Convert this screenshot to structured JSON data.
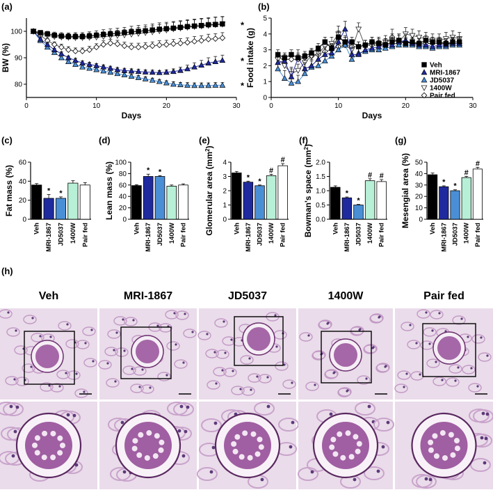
{
  "colors": {
    "Veh": "#000000",
    "MRI-1867": "#1f2a9e",
    "JD5037": "#4a8fd6",
    "1400W": "#b7f0d6",
    "Pair fed": "#ffffff",
    "tissue_bg": "#eadcea",
    "tissue_stain": "#8a3a8c"
  },
  "panels": {
    "a": "(a)",
    "b": "(b)",
    "c": "(c)",
    "d": "(d)",
    "e": "(e)",
    "f": "(f)",
    "g": "(g)",
    "h": "(h)"
  },
  "chart_data": [
    {
      "id": "a",
      "type": "line",
      "xlabel": "Days",
      "ylabel": "BW (%)",
      "xlim": [
        0,
        30
      ],
      "ylim": [
        75,
        105
      ],
      "xticks": [
        0,
        10,
        20,
        30
      ],
      "yticks": [
        80,
        90,
        100
      ],
      "x": [
        1,
        2,
        3,
        4,
        5,
        6,
        7,
        8,
        9,
        10,
        11,
        12,
        13,
        14,
        15,
        16,
        17,
        18,
        19,
        20,
        21,
        22,
        23,
        24,
        25,
        26,
        27,
        28
      ],
      "series": [
        {
          "name": "Veh",
          "marker": "square",
          "values": [
            100,
            99.5,
            99,
            98.5,
            98.2,
            98,
            98,
            98,
            98.2,
            98.5,
            98.8,
            99,
            99.2,
            99.5,
            99.8,
            100,
            100.2,
            100.5,
            100.8,
            101,
            101.2,
            101.5,
            101.8,
            102,
            102.2,
            102.5,
            102.6,
            102.8
          ],
          "err": [
            0.5,
            0.8,
            1,
            1.2,
            1.3,
            1.4,
            1.5,
            1.5,
            1.6,
            1.7,
            1.8,
            1.9,
            2,
            2,
            2.1,
            2.2,
            2.2,
            2.3,
            2.4,
            2.4,
            2.5,
            2.5,
            2.6,
            2.6,
            2.7,
            2.7,
            2.8,
            2.8
          ]
        },
        {
          "name": "MRI-1867",
          "marker": "triangle-up",
          "values": [
            100,
            97,
            95,
            93,
            91.5,
            90,
            89,
            88,
            87.5,
            87,
            86.5,
            86,
            85.5,
            85.2,
            85,
            84.8,
            84.6,
            84.5,
            84.4,
            84.5,
            84.8,
            85.2,
            85.8,
            86.5,
            87.2,
            88,
            88.5,
            89
          ],
          "err": [
            0.4,
            0.5,
            0.6,
            0.6,
            0.7,
            0.7,
            0.8,
            0.8,
            0.8,
            0.8,
            0.8,
            0.8,
            0.8,
            0.8,
            0.8,
            0.8,
            0.8,
            0.8,
            0.8,
            0.9,
            1,
            1.2,
            1.4,
            1.6,
            1.8,
            2,
            2,
            2
          ]
        },
        {
          "name": "JD5037",
          "marker": "triangle-up",
          "values": [
            100,
            96.5,
            94,
            92,
            90,
            88.5,
            87.5,
            86.5,
            86,
            85.5,
            85,
            84.5,
            84,
            83.5,
            83,
            82.5,
            82,
            81.5,
            81,
            80.5,
            80,
            79.8,
            79.6,
            79.5,
            79.5,
            79.5,
            79.6,
            79.6
          ],
          "err": [
            0.4,
            0.5,
            0.6,
            0.6,
            0.7,
            0.7,
            0.7,
            0.7,
            0.7,
            0.8,
            0.8,
            0.8,
            0.8,
            0.8,
            0.8,
            0.8,
            0.8,
            0.8,
            0.8,
            0.8,
            0.9,
            0.9,
            1,
            1,
            1,
            1,
            1,
            1
          ]
        },
        {
          "name": "1400W",
          "marker": "triangle-down",
          "values": [
            100,
            99,
            98.5,
            98,
            97.8,
            97.7,
            97.6,
            97.6,
            97.7,
            97.8,
            98,
            98.2,
            98.4,
            98.6,
            98.9,
            99.2,
            99.5,
            99.8,
            100.2,
            100.5,
            100.9,
            101.2,
            101.5,
            101.8,
            102,
            102.2,
            102.5,
            102.7
          ],
          "err": [
            0.5,
            0.8,
            1,
            1.2,
            1.3,
            1.4,
            1.5,
            1.5,
            1.6,
            1.7,
            1.8,
            1.9,
            2,
            2,
            2.1,
            2.2,
            2.2,
            2.3,
            2.4,
            2.4,
            2.5,
            2.5,
            2.6,
            2.6,
            2.7,
            2.7,
            2.8,
            2.8
          ]
        },
        {
          "name": "Pair fed",
          "marker": "diamond",
          "values": [
            100,
            98.5,
            96.5,
            95,
            94,
            93,
            92.5,
            92.5,
            93,
            94,
            95,
            95.5,
            95.2,
            94.5,
            94,
            94,
            94.2,
            94.5,
            94.8,
            95,
            95.3,
            95.5,
            95.8,
            96.2,
            96.5,
            97,
            97.2,
            97.5
          ],
          "err": [
            0.5,
            0.7,
            0.9,
            1,
            1.1,
            1.2,
            1.2,
            1.2,
            1.3,
            1.3,
            1.4,
            1.4,
            1.4,
            1.4,
            1.5,
            1.5,
            1.5,
            1.5,
            1.6,
            1.6,
            1.6,
            1.7,
            1.7,
            1.8,
            1.8,
            1.9,
            1.9,
            2
          ]
        }
      ],
      "annotations": [
        "*",
        "*",
        "*"
      ]
    },
    {
      "id": "b",
      "type": "line",
      "xlabel": "Days",
      "ylabel": "Food intake (g)",
      "xlim": [
        0,
        30
      ],
      "ylim": [
        0,
        5
      ],
      "xticks": [
        0,
        10,
        20,
        30
      ],
      "yticks": [
        0,
        1,
        2,
        3,
        4,
        5
      ],
      "legend_position": "right",
      "x": [
        1,
        2,
        3,
        4,
        5,
        6,
        7,
        8,
        9,
        10,
        11,
        12,
        13,
        14,
        15,
        16,
        17,
        18,
        19,
        20,
        21,
        22,
        23,
        24,
        25,
        26,
        27,
        28
      ],
      "series": [
        {
          "name": "Veh",
          "marker": "square",
          "values": [
            2.7,
            2.5,
            2.7,
            2.5,
            2.6,
            2.8,
            3.1,
            3.5,
            3.1,
            3.8,
            3.5,
            3.5,
            3.2,
            3.3,
            3.5,
            3.4,
            3.3,
            3.5,
            3.6,
            3.4,
            3.5,
            3.4,
            3.6,
            3.5,
            3.5,
            3.4,
            3.5,
            3.5
          ],
          "err": [
            0.3,
            0.3,
            0.3,
            0.3,
            0.3,
            0.3,
            0.3,
            0.3,
            0.3,
            0.4,
            0.4,
            0.3,
            0.3,
            0.3,
            0.3,
            0.3,
            0.3,
            0.3,
            0.4,
            0.3,
            0.3,
            0.3,
            0.3,
            0.3,
            0.3,
            0.3,
            0.3,
            0.3
          ]
        },
        {
          "name": "MRI-1867",
          "marker": "triangle-up",
          "values": [
            2.2,
            2.3,
            1.3,
            2.5,
            1.8,
            2.0,
            2.4,
            2.7,
            2.8,
            3.5,
            4.3,
            2.7,
            2.7,
            3.0,
            3.1,
            3.2,
            3.3,
            3.3,
            3.5,
            3.6,
            3.4,
            3.3,
            3.3,
            3.2,
            3.3,
            3.3,
            3.4,
            3.4
          ],
          "err": [
            0.4,
            0.5,
            0.5,
            0.5,
            0.4,
            0.4,
            0.5,
            0.5,
            0.5,
            0.6,
            0.5,
            0.4,
            0.4,
            0.4,
            0.4,
            0.4,
            0.4,
            0.4,
            0.4,
            0.4,
            0.4,
            0.4,
            0.4,
            0.4,
            0.4,
            0.4,
            0.4,
            0.4
          ]
        },
        {
          "name": "JD5037",
          "marker": "triangle-up",
          "values": [
            1.8,
            1.2,
            0.9,
            1.0,
            1.5,
            1.9,
            2.0,
            2.3,
            2.6,
            3.0,
            3.3,
            2.4,
            2.8,
            2.9,
            3.0,
            3.0,
            3.1,
            3.2,
            3.3,
            3.3,
            3.3,
            3.2,
            3.2,
            3.1,
            3.2,
            3.2,
            3.3,
            3.3
          ],
          "err": [
            0.4,
            0.5,
            0.5,
            0.4,
            0.4,
            0.4,
            0.4,
            0.4,
            0.4,
            0.5,
            0.5,
            0.4,
            0.4,
            0.4,
            0.4,
            0.4,
            0.4,
            0.4,
            0.4,
            0.4,
            0.4,
            0.4,
            0.4,
            0.4,
            0.4,
            0.4,
            0.4,
            0.4
          ]
        },
        {
          "name": "1400W",
          "marker": "triangle-down",
          "values": [
            2.4,
            2.0,
            1.5,
            1.7,
            2.2,
            2.6,
            2.8,
            3.2,
            3.4,
            4.0,
            3.3,
            3.0,
            4.3,
            3.2,
            3.4,
            3.4,
            3.5,
            3.6,
            3.5,
            4.0,
            3.9,
            3.8,
            3.7,
            3.6,
            3.6,
            3.7,
            3.8,
            3.7
          ],
          "err": [
            0.3,
            0.4,
            0.4,
            0.4,
            0.4,
            0.4,
            0.4,
            0.4,
            0.4,
            0.5,
            0.5,
            0.4,
            0.4,
            0.4,
            0.4,
            0.4,
            0.4,
            0.4,
            0.5,
            0.4,
            0.4,
            0.4,
            0.4,
            0.4,
            0.4,
            0.4,
            0.4,
            0.4
          ]
        },
        {
          "name": "Pair fed",
          "marker": "diamond",
          "values": [
            2.5,
            2.4,
            2.4,
            2.4,
            2.5,
            2.6,
            2.7,
            2.9,
            3.0,
            3.2,
            3.3,
            3.2,
            3.2,
            3.3,
            3.3,
            3.3,
            3.4,
            3.8,
            3.4,
            3.5,
            3.4,
            3.4,
            3.4,
            3.4,
            3.4,
            3.4,
            3.4,
            3.4
          ],
          "err": [
            0.3,
            0.3,
            0.3,
            0.3,
            0.3,
            0.3,
            0.3,
            0.3,
            0.3,
            0.3,
            0.3,
            0.3,
            0.3,
            0.3,
            0.3,
            0.3,
            0.3,
            0.5,
            0.3,
            0.3,
            0.3,
            0.3,
            0.3,
            0.3,
            0.3,
            0.3,
            0.3,
            0.3
          ]
        }
      ]
    },
    {
      "id": "c",
      "type": "bar",
      "ylabel": "Fat mass (%)",
      "ylim": [
        0,
        60
      ],
      "yticks": [
        0,
        20,
        40,
        60
      ],
      "categories": [
        "Veh",
        "MRI-1867",
        "JD5037",
        "1400W",
        "Pair fed"
      ],
      "values": [
        36,
        22,
        22,
        38,
        36
      ],
      "err": [
        1.5,
        4,
        1.5,
        2.5,
        2.5
      ],
      "marks": [
        "",
        "*",
        "*",
        "",
        ""
      ]
    },
    {
      "id": "d",
      "type": "bar",
      "ylabel": "Lean mass (%)",
      "ylim": [
        0,
        100
      ],
      "yticks": [
        0,
        20,
        40,
        60,
        80,
        100
      ],
      "categories": [
        "Veh",
        "MRI-1867",
        "JD5037",
        "1400W",
        "Pair fed"
      ],
      "values": [
        59,
        75,
        75,
        58,
        60
      ],
      "err": [
        1.5,
        4,
        1.5,
        2,
        2
      ],
      "marks": [
        "",
        "*",
        "*",
        "",
        ""
      ]
    },
    {
      "id": "e",
      "type": "bar",
      "ylabel": "Glomerular area (mm",
      "ylabel_sup": "2",
      "ylabel_end": ")",
      "ylim": [
        0,
        4
      ],
      "yticks": [
        0,
        1,
        2,
        3,
        4
      ],
      "categories": [
        "Veh",
        "MRI-1867",
        "JD5037",
        "1400W",
        "Pair fed"
      ],
      "values": [
        3.25,
        2.6,
        2.35,
        3.05,
        3.75
      ],
      "err": [
        0.1,
        0.07,
        0.05,
        0.1,
        0.15
      ],
      "marks": [
        "",
        "*",
        "*",
        "#",
        "#"
      ]
    },
    {
      "id": "f",
      "type": "bar",
      "ylabel": "Bowman's space (mm",
      "ylabel_sup": "2",
      "ylabel_end": ")",
      "ylim": [
        0,
        2
      ],
      "yticks": [
        0.0,
        0.5,
        1.0,
        1.5,
        2.0
      ],
      "ytick_labels": [
        "0.0",
        "0.5",
        "1.0",
        "1.5",
        "2.0"
      ],
      "categories": [
        "Veh",
        "MRI-1867",
        "JD5037",
        "1400W",
        "Pair fed"
      ],
      "values": [
        1.12,
        0.75,
        0.5,
        1.35,
        1.32
      ],
      "err": [
        0.05,
        0.03,
        0.02,
        0.07,
        0.07
      ],
      "marks": [
        "",
        "*",
        "*",
        "#",
        "#"
      ]
    },
    {
      "id": "g",
      "type": "bar",
      "ylabel": "Mesengial area (%)",
      "ylim": [
        0,
        50
      ],
      "yticks": [
        0,
        10,
        20,
        30,
        40,
        50
      ],
      "categories": [
        "Veh",
        "MRI-1867",
        "JD5037",
        "1400W",
        "Pair fed"
      ],
      "values": [
        39,
        28.5,
        25,
        36.5,
        44
      ],
      "err": [
        1.5,
        0.8,
        0.8,
        1,
        1.5
      ],
      "marks": [
        "",
        "*",
        "*",
        "#",
        "#"
      ]
    }
  ],
  "histology": {
    "labels": [
      "Veh",
      "MRI-1867",
      "JD5037",
      "1400W",
      "Pair fed"
    ]
  }
}
